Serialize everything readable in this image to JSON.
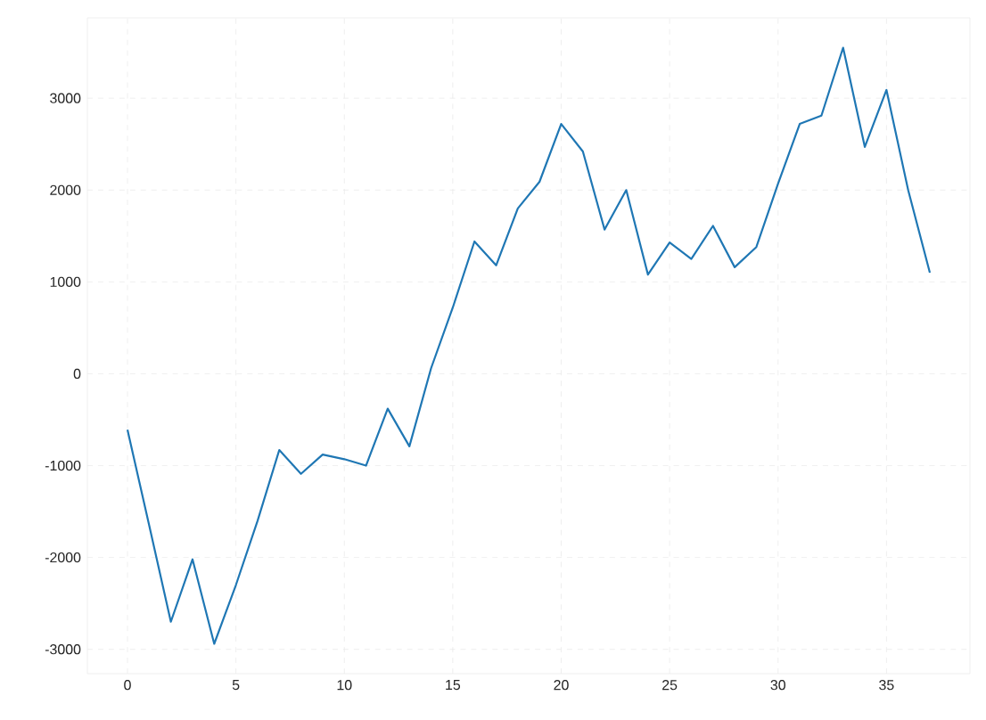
{
  "chart_data": {
    "type": "line",
    "x": [
      0,
      1,
      2,
      3,
      4,
      5,
      6,
      7,
      8,
      9,
      10,
      11,
      12,
      13,
      14,
      15,
      16,
      17,
      18,
      19,
      20,
      21,
      22,
      23,
      24,
      25,
      26,
      27,
      28,
      29,
      30,
      31,
      32,
      33,
      34,
      35,
      36,
      37
    ],
    "series": [
      {
        "color": "#1f77b4",
        "values": [
          -610,
          -1650,
          -2700,
          -2020,
          -2940,
          -2300,
          -1600,
          -830,
          -1090,
          -880,
          -930,
          -1000,
          -380,
          -790,
          60,
          720,
          1440,
          1180,
          1800,
          2090,
          2720,
          2420,
          1570,
          2000,
          1080,
          1430,
          1250,
          1610,
          1160,
          1380,
          2070,
          2720,
          2810,
          3550,
          2470,
          3090,
          2000,
          1100
        ]
      }
    ],
    "xlim": [
      -1.85,
      38.85
    ],
    "ylim": [
      -3265,
      3875
    ],
    "xticks": [
      0,
      5,
      10,
      15,
      20,
      25,
      30,
      35
    ],
    "yticks": [
      -3000,
      -2000,
      -1000,
      0,
      1000,
      2000,
      3000
    ],
    "grid": true,
    "line_style": "solid",
    "marker": "none"
  }
}
